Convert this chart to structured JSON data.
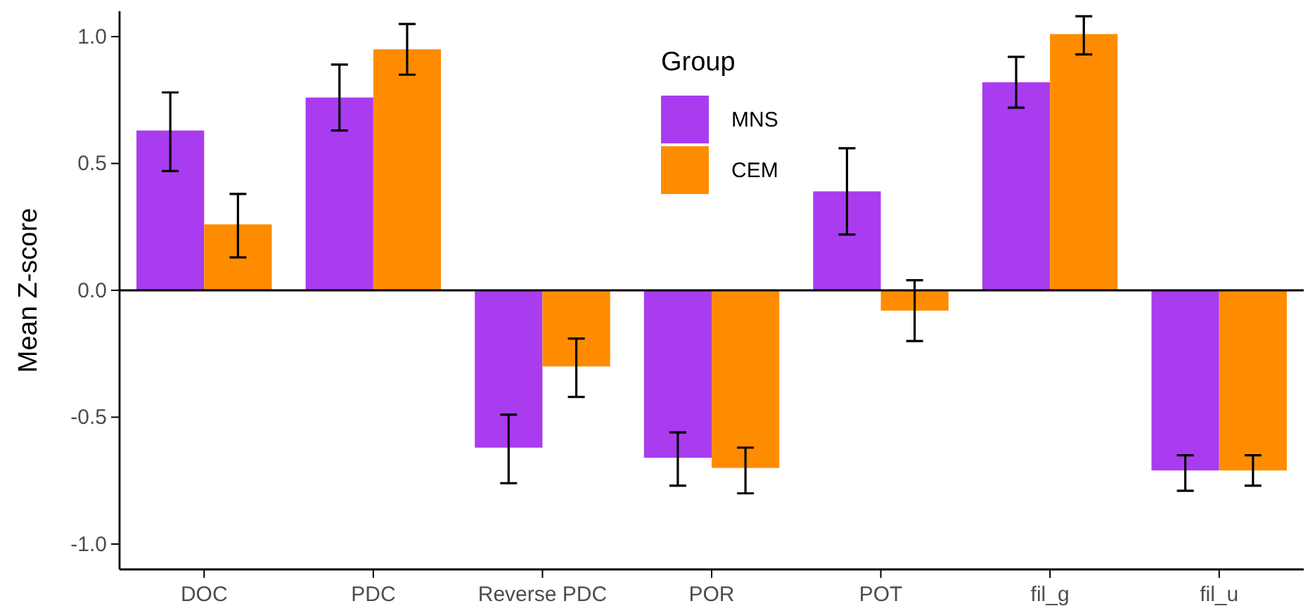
{
  "chart_data": {
    "type": "bar",
    "ylabel": "Mean Z-score",
    "legend_title": "Group",
    "legend": "top",
    "grid": false,
    "categories": [
      "DOC",
      "PDC",
      "Reverse PDC",
      "POR",
      "POT",
      "fil_g",
      "fil_u"
    ],
    "ylim": [
      -1.1,
      1.1
    ],
    "yticks": [
      {
        "value": -1,
        "label": "-1.0"
      },
      {
        "value": -0.5,
        "label": "-0.5"
      },
      {
        "value": 0,
        "label": "0.0"
      },
      {
        "value": 0.5,
        "label": "0.5"
      },
      {
        "value": 1,
        "label": "1.0"
      }
    ],
    "ref_lines": [
      {
        "axis": "y",
        "value": 0,
        "color": "#000000"
      }
    ],
    "series": [
      {
        "name": "MNS",
        "color": "#a93cef",
        "values": [
          0.63,
          0.76,
          -0.62,
          -0.66,
          0.39,
          0.82,
          -0.71
        ],
        "errors": [
          [
            0.47,
            0.78
          ],
          [
            0.63,
            0.89
          ],
          [
            -0.76,
            -0.49
          ],
          [
            -0.77,
            -0.56
          ],
          [
            0.22,
            0.56
          ],
          [
            0.72,
            0.92
          ],
          [
            -0.79,
            -0.65
          ]
        ]
      },
      {
        "name": "CEM",
        "color": "#ff8c00",
        "values": [
          0.26,
          0.95,
          -0.3,
          -0.7,
          -0.08,
          1.01,
          -0.71
        ],
        "errors": [
          [
            0.13,
            0.38
          ],
          [
            0.85,
            1.05
          ],
          [
            -0.42,
            -0.19
          ],
          [
            -0.8,
            -0.62
          ],
          [
            -0.2,
            0.04
          ],
          [
            0.93,
            1.08
          ],
          [
            -0.77,
            -0.65
          ]
        ]
      }
    ]
  }
}
